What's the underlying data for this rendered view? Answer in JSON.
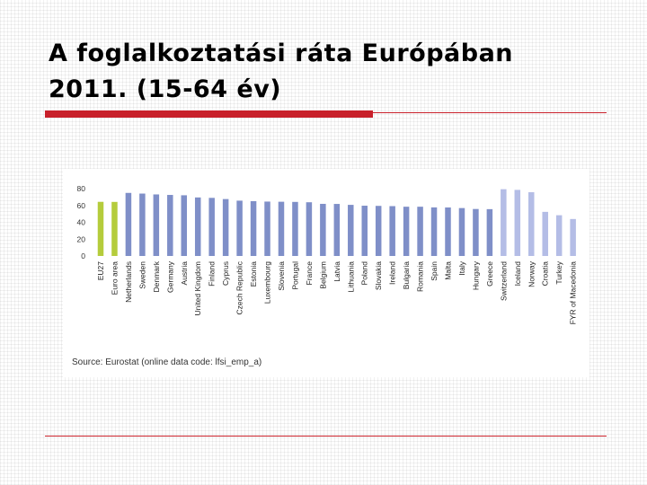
{
  "slide": {
    "title_line1": "A foglalkoztatási ráta Európában",
    "title_line2": "2011. (15-64 év)"
  },
  "colors": {
    "accent_red": "#c8202a",
    "bar_highlight": "#b5cc3c",
    "bar_eu": "#7f8fc8",
    "bar_non_eu": "#b4bde6"
  },
  "chart_data": {
    "type": "bar",
    "title": "",
    "xlabel": "",
    "ylabel": "",
    "ylim": [
      0,
      80
    ],
    "yticks": [
      0,
      20,
      40,
      60,
      80
    ],
    "grid": false,
    "categories": [
      "EU27",
      "Euro area",
      "Netherlands",
      "Sweden",
      "Denmark",
      "Germany",
      "Austria",
      "United Kingdom",
      "Finland",
      "Cyprus",
      "Czech Republic",
      "Estonia",
      "Luxembourg",
      "Slovenia",
      "Portugal",
      "France",
      "Belgium",
      "Latvia",
      "Lithuania",
      "Poland",
      "Slovakia",
      "Ireland",
      "Bulgaria",
      "Romania",
      "Spain",
      "Malta",
      "Italy",
      "Hungary",
      "Greece",
      "Switzerland",
      "Iceland",
      "Norway",
      "Croatia",
      "Turkey",
      "FYR of Macedonia"
    ],
    "values": [
      64.3,
      64.2,
      74.9,
      74.1,
      73.1,
      72.5,
      72.1,
      69.5,
      69.0,
      67.6,
      65.7,
      65.1,
      64.6,
      64.4,
      64.2,
      63.8,
      61.9,
      61.8,
      60.7,
      59.7,
      59.5,
      59.2,
      58.5,
      58.5,
      57.7,
      57.6,
      56.9,
      55.8,
      55.6,
      79.3,
      78.5,
      75.7,
      52.4,
      48.4,
      43.9
    ],
    "bar_groups": [
      "aggregate",
      "aggregate",
      "eu",
      "eu",
      "eu",
      "eu",
      "eu",
      "eu",
      "eu",
      "eu",
      "eu",
      "eu",
      "eu",
      "eu",
      "eu",
      "eu",
      "eu",
      "eu",
      "eu",
      "eu",
      "eu",
      "eu",
      "eu",
      "eu",
      "eu",
      "eu",
      "eu",
      "eu",
      "eu",
      "non_eu",
      "non_eu",
      "non_eu",
      "non_eu",
      "non_eu",
      "non_eu"
    ],
    "source_note": "Source: Eurostat (online data code: lfsi_emp_a)"
  }
}
